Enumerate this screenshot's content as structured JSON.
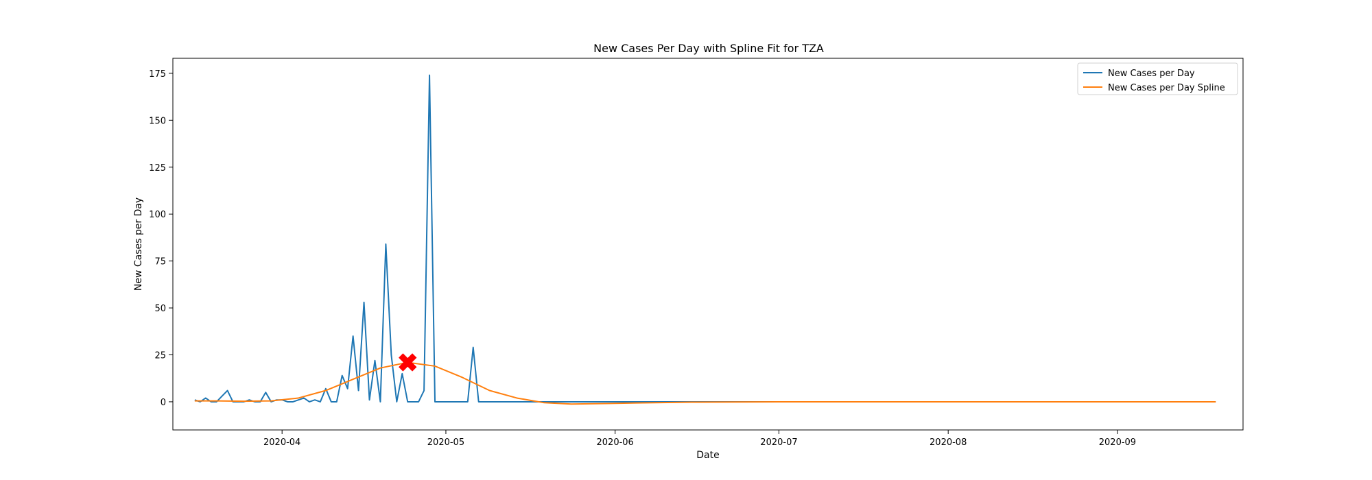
{
  "chart_data": {
    "type": "line",
    "title": "New Cases Per Day with Spline Fit for TZA",
    "xlabel": "Date",
    "ylabel": "New Cases per Day",
    "x_start": "2020-03-16",
    "x_end": "2020-09-19",
    "xlim": [
      "2020-03-12",
      "2020-09-24"
    ],
    "ylim": [
      -15,
      183
    ],
    "x_ticks": [
      "2020-04",
      "2020-05",
      "2020-06",
      "2020-07",
      "2020-08",
      "2020-09"
    ],
    "y_ticks": [
      0,
      25,
      50,
      75,
      100,
      125,
      150,
      175
    ],
    "legend_position": "top-right",
    "grid": false,
    "series": [
      {
        "name": "New Cases per Day",
        "color": "#1f77b4",
        "x": [
          "2020-03-16",
          "2020-03-17",
          "2020-03-18",
          "2020-03-19",
          "2020-03-20",
          "2020-03-21",
          "2020-03-22",
          "2020-03-23",
          "2020-03-24",
          "2020-03-25",
          "2020-03-26",
          "2020-03-27",
          "2020-03-28",
          "2020-03-29",
          "2020-03-30",
          "2020-03-31",
          "2020-04-01",
          "2020-04-02",
          "2020-04-03",
          "2020-04-04",
          "2020-04-05",
          "2020-04-06",
          "2020-04-07",
          "2020-04-08",
          "2020-04-09",
          "2020-04-10",
          "2020-04-11",
          "2020-04-12",
          "2020-04-13",
          "2020-04-14",
          "2020-04-15",
          "2020-04-16",
          "2020-04-17",
          "2020-04-18",
          "2020-04-19",
          "2020-04-20",
          "2020-04-21",
          "2020-04-22",
          "2020-04-23",
          "2020-04-24",
          "2020-04-25",
          "2020-04-26",
          "2020-04-27",
          "2020-04-28",
          "2020-04-29",
          "2020-04-30",
          "2020-05-01",
          "2020-05-02",
          "2020-05-03",
          "2020-05-04",
          "2020-05-05",
          "2020-05-06",
          "2020-05-07",
          "2020-05-08",
          "2020-05-09",
          "2020-05-10",
          "2020-09-19"
        ],
        "y": [
          1,
          0,
          2,
          0,
          0,
          3,
          6,
          0,
          0,
          0,
          1,
          0,
          0,
          5,
          0,
          1,
          1,
          0,
          0,
          1,
          2,
          0,
          1,
          0,
          7,
          0,
          0,
          14,
          7,
          35,
          6,
          53,
          1,
          22,
          0,
          84,
          25,
          0,
          15,
          0,
          0,
          0,
          6,
          174,
          0,
          0,
          0,
          0,
          0,
          0,
          0,
          29,
          0,
          0,
          0,
          0,
          0
        ]
      },
      {
        "name": "New Cases per Day Spline",
        "color": "#ff7f0e",
        "x": [
          "2020-03-16",
          "2020-03-20",
          "2020-03-25",
          "2020-03-30",
          "2020-04-04",
          "2020-04-09",
          "2020-04-14",
          "2020-04-19",
          "2020-04-24",
          "2020-04-29",
          "2020-05-04",
          "2020-05-09",
          "2020-05-14",
          "2020-05-19",
          "2020-05-24",
          "2020-05-29",
          "2020-06-05",
          "2020-06-15",
          "2020-07-01",
          "2020-08-01",
          "2020-09-01",
          "2020-09-19"
        ],
        "y": [
          0.5,
          0.5,
          0.3,
          0.5,
          2,
          6,
          12,
          18,
          21,
          19,
          13,
          6,
          2,
          -0.5,
          -1.2,
          -1,
          -0.6,
          -0.2,
          0,
          0,
          0,
          0
        ]
      }
    ],
    "annotations": [
      {
        "type": "marker",
        "shape": "x",
        "color": "#ff0000",
        "x": "2020-04-24",
        "y": 21
      }
    ]
  }
}
